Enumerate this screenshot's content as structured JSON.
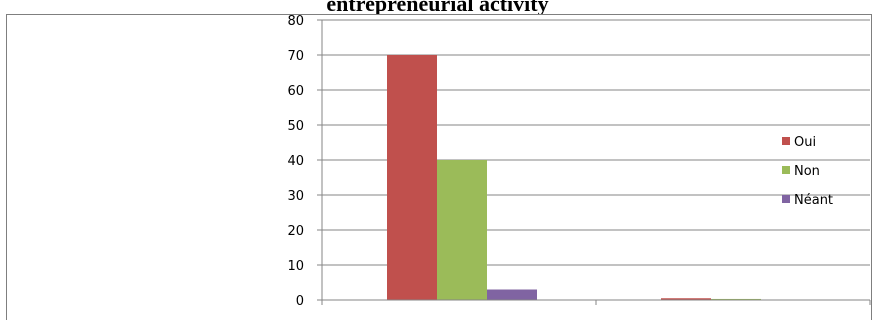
{
  "chart_data": {
    "type": "bar",
    "title": "entrepreneurial activity",
    "xlabel": "",
    "ylabel": "",
    "ylim": [
      0,
      80
    ],
    "yticks": [
      0,
      10,
      20,
      30,
      40,
      50,
      60,
      70,
      80
    ],
    "categories": [
      "",
      ""
    ],
    "series": [
      {
        "name": "Oui",
        "color": "#c0504d",
        "values": [
          70,
          0.5
        ]
      },
      {
        "name": "Non",
        "color": "#9bbb59",
        "values": [
          40,
          0.3
        ]
      },
      {
        "name": "Néant",
        "color": "#8064a2",
        "values": [
          3,
          0
        ]
      }
    ],
    "grid": true,
    "legend": "right"
  }
}
